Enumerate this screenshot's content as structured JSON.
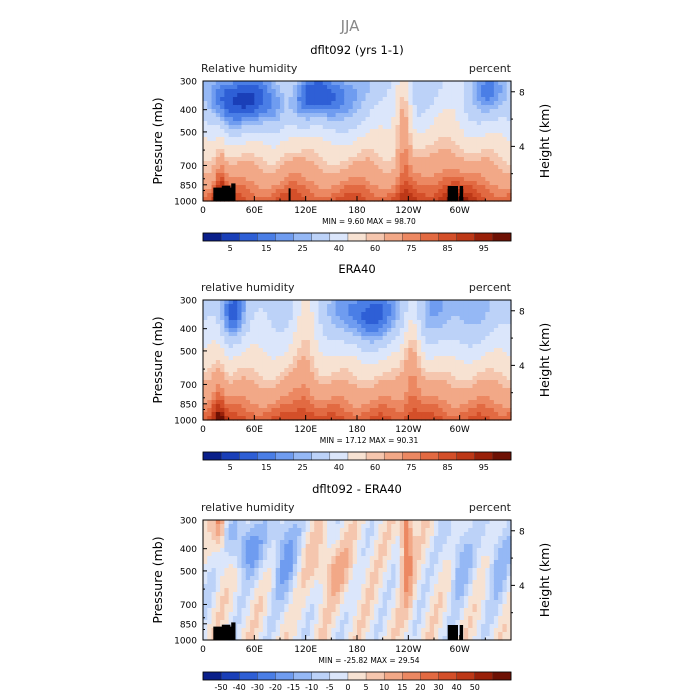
{
  "figure": {
    "title": "JJA"
  },
  "colorscale_pos": {
    "labels": [
      "5",
      "15",
      "25",
      "40",
      "60",
      "75",
      "85",
      "95"
    ],
    "colors": [
      "#0a1f8a",
      "#1a3fb8",
      "#2e5fd6",
      "#4a7ee6",
      "#6f9cf0",
      "#95b8f5",
      "#bcd2f8",
      "#dbe6fb",
      "#f7e2d2",
      "#f5c6ae",
      "#f2a887",
      "#ec8862",
      "#e26a42",
      "#d44f29",
      "#bd3817",
      "#992009",
      "#6e1104"
    ]
  },
  "colorscale_diff": {
    "labels": [
      "-50",
      "-40",
      "-30",
      "-20",
      "-15",
      "-10",
      "-5",
      "0",
      "5",
      "10",
      "15",
      "20",
      "30",
      "40",
      "50"
    ],
    "colors": [
      "#0a1f8a",
      "#1a3fb8",
      "#2e5fd6",
      "#4a7ee6",
      "#6f9cf0",
      "#95b8f5",
      "#bcd2f8",
      "#dbe6fb",
      "#f7e2d2",
      "#f5c6ae",
      "#f2a887",
      "#ec8862",
      "#e26a42",
      "#d44f29",
      "#bd3817",
      "#992009",
      "#6e1104"
    ]
  },
  "chart_data": [
    {
      "type": "heatmap",
      "title": "dflt092 (yrs 1-1)",
      "left_label": "Relative humidity",
      "right_label": "percent",
      "ylabel": "Pressure (mb)",
      "ylabel_right": "Height (km)",
      "xticks": [
        "0",
        "60E",
        "120E",
        "180",
        "120W",
        "60W"
      ],
      "xtick_lon": [
        0,
        60,
        120,
        180,
        240,
        300
      ],
      "yticks": [
        "300",
        "400",
        "500",
        "700",
        "850",
        "1000"
      ],
      "ytick_p": [
        300,
        400,
        500,
        700,
        850,
        1000
      ],
      "yticks_right": [
        "8",
        "4"
      ],
      "yticks_right_km": [
        8,
        4
      ],
      "xlim": [
        0,
        360
      ],
      "ylim": [
        1000,
        300
      ],
      "stats": "MIN =    9.60   MAX =   98.70",
      "colorbar": "pos",
      "mode": "rh",
      "terrain": true
    },
    {
      "type": "heatmap",
      "title": "ERA40",
      "left_label": "relative humidity",
      "right_label": "percent",
      "ylabel": "Pressure (mb)",
      "ylabel_right": "Height (km)",
      "xticks": [
        "0",
        "60E",
        "120E",
        "180",
        "120W",
        "60W"
      ],
      "xtick_lon": [
        0,
        60,
        120,
        180,
        240,
        300
      ],
      "yticks": [
        "300",
        "400",
        "500",
        "700",
        "850",
        "1000"
      ],
      "ytick_p": [
        300,
        400,
        500,
        700,
        850,
        1000
      ],
      "yticks_right": [
        "8",
        "4"
      ],
      "yticks_right_km": [
        8,
        4
      ],
      "xlim": [
        0,
        360
      ],
      "ylim": [
        1000,
        300
      ],
      "stats": "MIN =   17.12   MAX =   90.31",
      "colorbar": "pos",
      "mode": "era",
      "terrain": false
    },
    {
      "type": "heatmap",
      "title": "dflt092 - ERA40",
      "left_label": "relative humidity",
      "right_label": "percent",
      "ylabel": "Pressure (mb)",
      "ylabel_right": "Height (km)",
      "xticks": [
        "0",
        "60E",
        "120E",
        "180",
        "120W",
        "60W"
      ],
      "xtick_lon": [
        0,
        60,
        120,
        180,
        240,
        300
      ],
      "yticks": [
        "300",
        "400",
        "500",
        "700",
        "850",
        "1000"
      ],
      "ytick_p": [
        300,
        400,
        500,
        700,
        850,
        1000
      ],
      "yticks_right": [
        "8",
        "4"
      ],
      "yticks_right_km": [
        8,
        4
      ],
      "xlim": [
        0,
        360
      ],
      "ylim": [
        1000,
        300
      ],
      "stats": "MIN =  -25.82   MAX =   29.54",
      "colorbar": "diff",
      "mode": "diff",
      "terrain": true
    }
  ]
}
